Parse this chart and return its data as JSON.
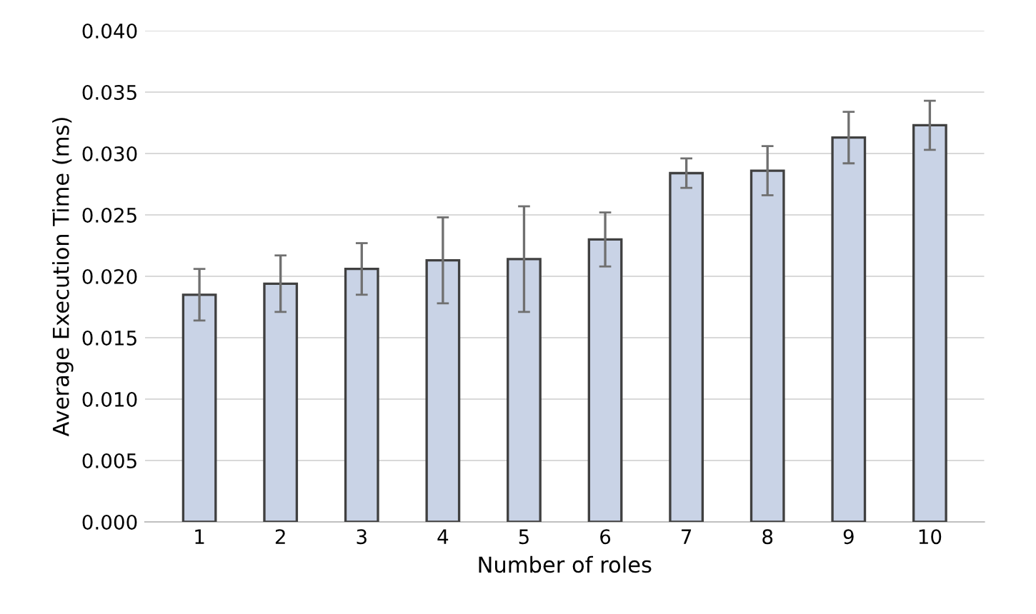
{
  "chart_data": {
    "type": "bar",
    "xlabel": "Number of roles",
    "ylabel": "Average Execution Time (ms)",
    "categories": [
      "1",
      "2",
      "3",
      "4",
      "5",
      "6",
      "7",
      "8",
      "9",
      "10"
    ],
    "values": [
      0.0185,
      0.0194,
      0.0206,
      0.0213,
      0.0214,
      0.023,
      0.0284,
      0.0286,
      0.0313,
      0.0323
    ],
    "errors": [
      0.0021,
      0.0023,
      0.0021,
      0.0035,
      0.0043,
      0.0022,
      0.0012,
      0.002,
      0.0021,
      0.002
    ],
    "color": "#c9d3e6",
    "ylim": [
      0,
      0.04
    ],
    "yticks": [
      {
        "value": 0,
        "label": "0.000"
      },
      {
        "value": 0.005,
        "label": "0.005"
      },
      {
        "value": 0.01,
        "label": "0.010"
      },
      {
        "value": 0.015,
        "label": "0.015"
      },
      {
        "value": 0.02,
        "label": "0.020"
      },
      {
        "value": 0.025,
        "label": "0.025"
      },
      {
        "value": 0.03,
        "label": "0.030"
      },
      {
        "value": 0.035,
        "label": "0.035"
      },
      {
        "value": 0.04,
        "label": "0.040"
      }
    ],
    "grid": "y"
  }
}
